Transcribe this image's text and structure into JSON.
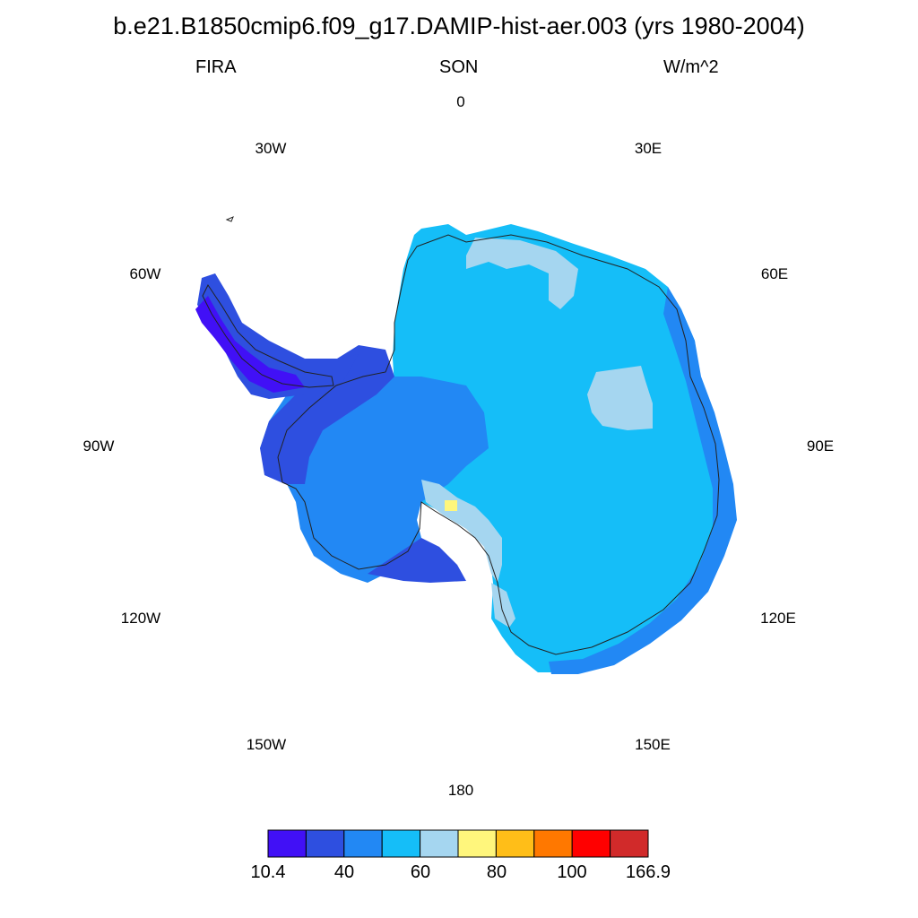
{
  "title": "b.e21.B1850cmip6.f09_g17.DAMIP-hist-aer.003 (yrs 1980-2004)",
  "variable": "FIRA",
  "season": "SON",
  "units": "W/m^2",
  "longitude_labels": [
    "0",
    "30E",
    "60E",
    "90E",
    "120E",
    "150E",
    "180",
    "150W",
    "120W",
    "90W",
    "60W",
    "30W"
  ],
  "colorbar": {
    "colors": [
      "#4110F6",
      "#2E4FE0",
      "#2288F4",
      "#15BEF8",
      "#A5D6F0",
      "#FFF67C",
      "#FFBE18",
      "#FF7800",
      "#FF0000",
      "#D12A2A"
    ],
    "labels": [
      "10.4",
      "40",
      "60",
      "80",
      "100",
      "166.9"
    ]
  },
  "map": {
    "projection": "polar stereographic (south)",
    "region": "Antarctica",
    "dominant_value_range": "50-60 over interior plateau; 40-50 along coasts and West Antarctica; 10.4-40 on Antarctic Peninsula; 60-70 patches in Dronning Maud Land, Wilkes Land and Transantarctic Mountains; 70-80 single cell near Ross Ice Shelf"
  }
}
